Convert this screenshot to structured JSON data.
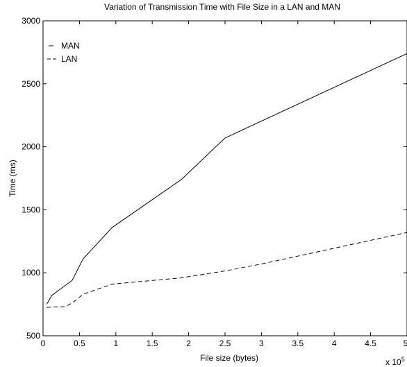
{
  "chart_data": {
    "type": "line",
    "title": "Variation of Transmission Time with File Size in a LAN and MAN",
    "xlabel": "File size (bytes)",
    "ylabel": "Time (ms)",
    "x_multiplier": "x 10",
    "x_multiplier_exp": "5",
    "xlim": [
      0,
      5
    ],
    "ylim": [
      500,
      3000
    ],
    "xticks": [
      "0",
      "0.5",
      "1",
      "1.5",
      "2",
      "2.5",
      "3",
      "3.5",
      "4",
      "4.5",
      "5"
    ],
    "yticks": [
      "500",
      "1000",
      "1500",
      "2000",
      "2500",
      "3000"
    ],
    "grid": false,
    "legend_position": "top-left",
    "series": [
      {
        "name": "MAN",
        "style": "solid",
        "x": [
          0.05,
          0.12,
          0.4,
          0.55,
          0.95,
          1.9,
          2.5,
          5.0
        ],
        "y": [
          750,
          820,
          940,
          1110,
          1360,
          1740,
          2070,
          2740
        ]
      },
      {
        "name": "LAN",
        "style": "dashed",
        "x": [
          0.05,
          0.2,
          0.3,
          0.4,
          0.55,
          0.95,
          1.9,
          2.5,
          3.0,
          5.0
        ],
        "y": [
          725,
          730,
          730,
          760,
          830,
          910,
          960,
          1015,
          1070,
          1320
        ]
      }
    ]
  }
}
